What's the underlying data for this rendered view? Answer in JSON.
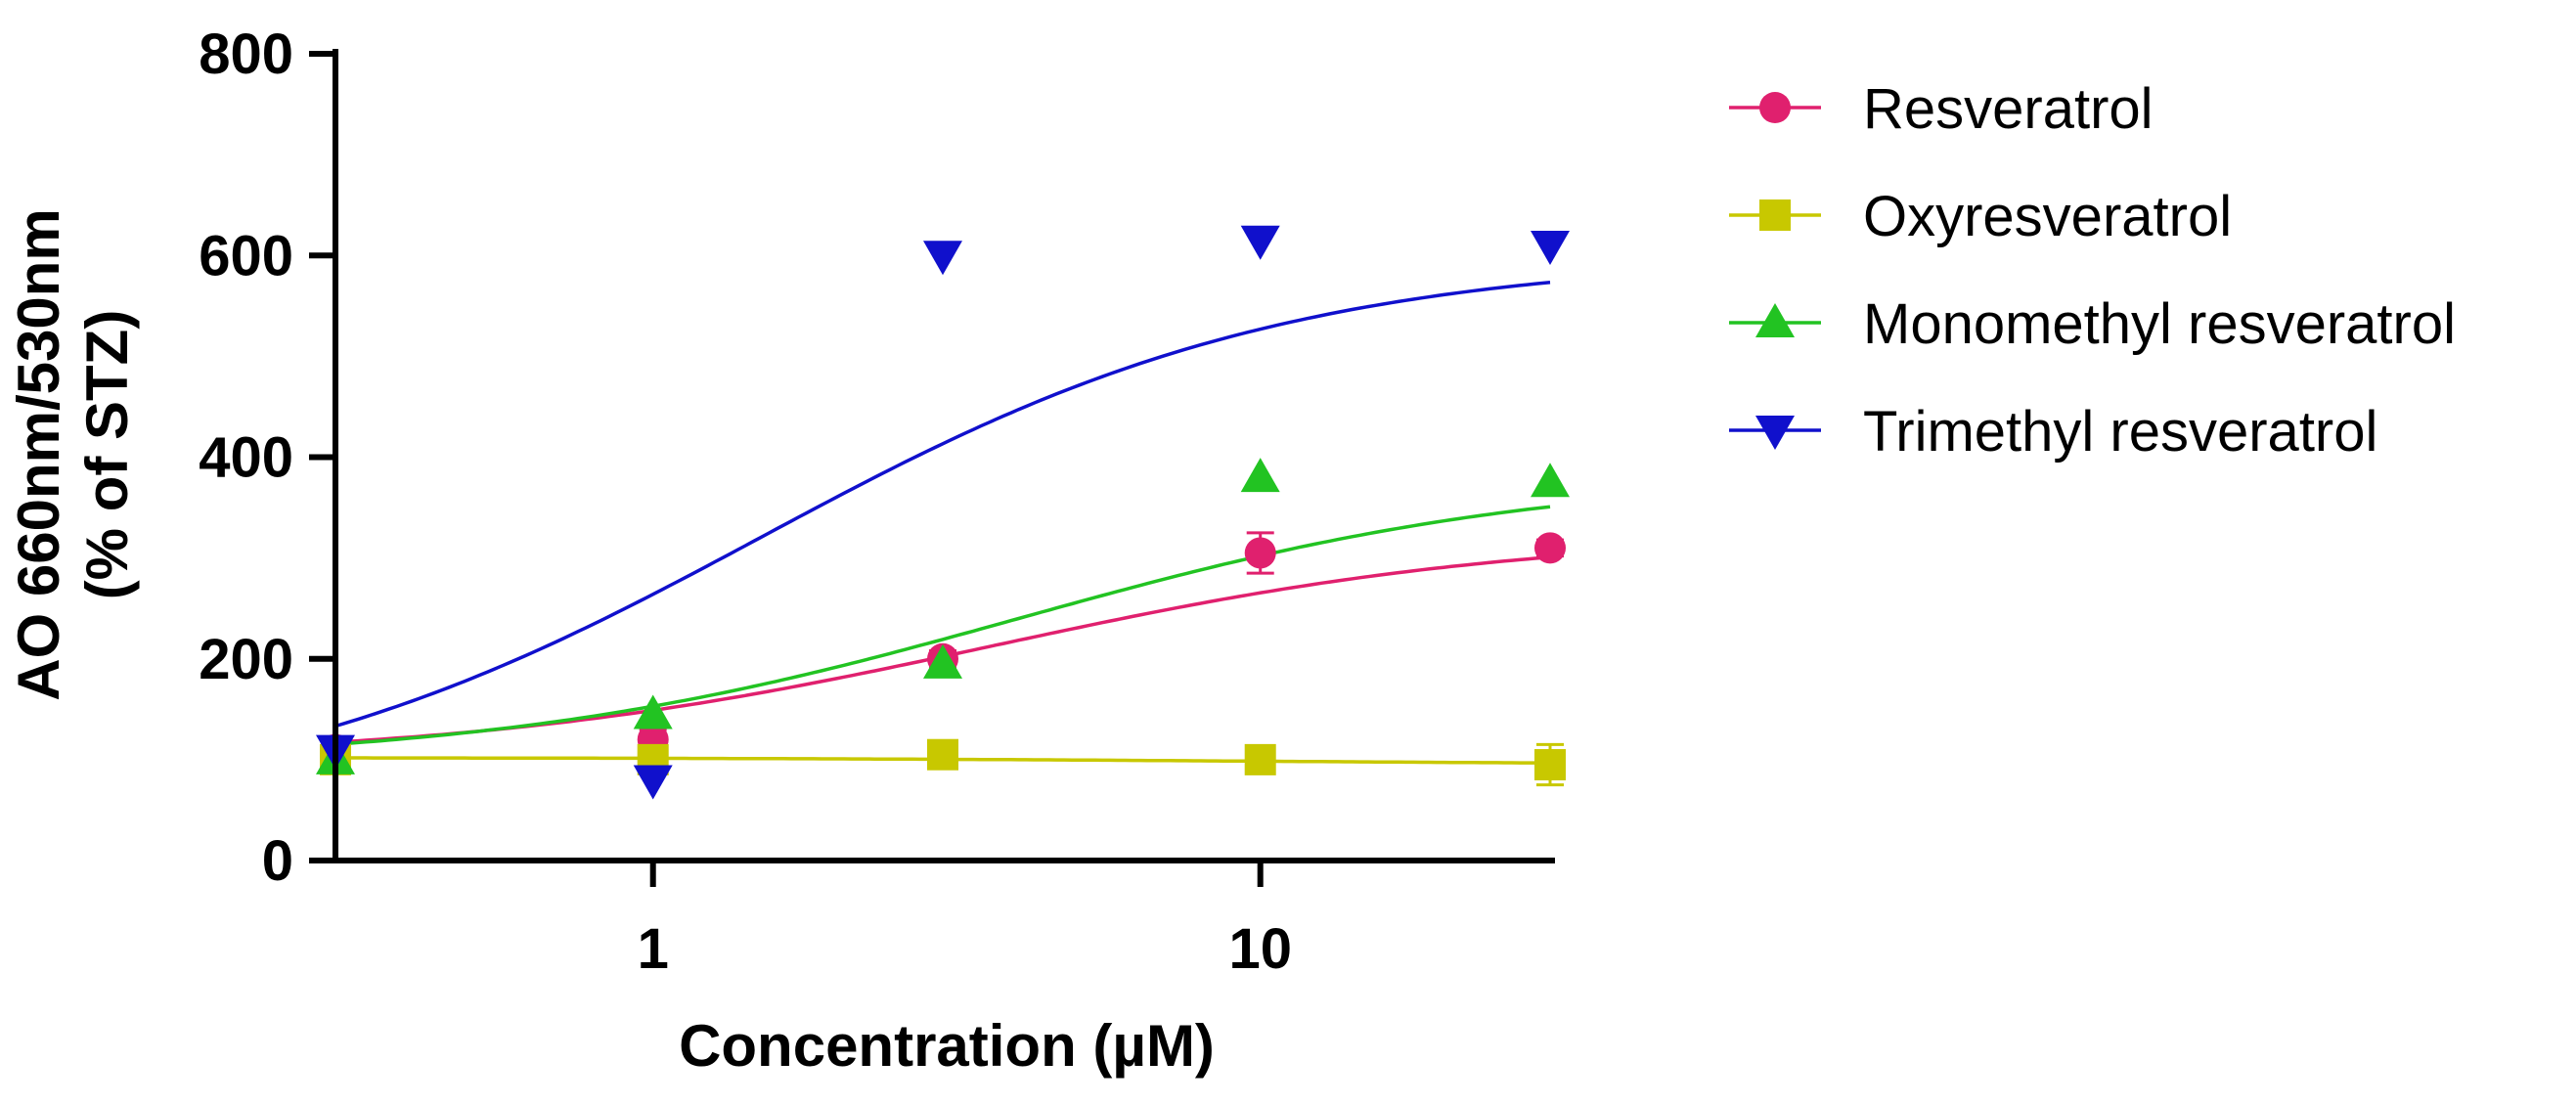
{
  "chart_data": {
    "type": "scatter",
    "title": "",
    "xlabel": "Concentration (µM)",
    "ylabel_lines": [
      "AO 660nm/530nm",
      "(% of STZ)"
    ],
    "xscale": "log",
    "xlim": [
      0.3,
      30
    ],
    "ylim": [
      0,
      800
    ],
    "x_ticks": [
      {
        "value": 1,
        "label": "1"
      },
      {
        "value": 10,
        "label": "10"
      }
    ],
    "y_ticks": [
      {
        "value": 0,
        "label": "0"
      },
      {
        "value": 200,
        "label": "200"
      },
      {
        "value": 400,
        "label": "400"
      },
      {
        "value": 600,
        "label": "600"
      },
      {
        "value": 800,
        "label": "800"
      }
    ],
    "grid": false,
    "legend_position": "right",
    "series": [
      {
        "name": "Resveratrol",
        "color": "#E0206E",
        "marker": "circle",
        "x": [
          0.3,
          1,
          3,
          10,
          30
        ],
        "y": [
          110,
          120,
          200,
          305,
          310
        ],
        "err": [
          0,
          10,
          8,
          20,
          8
        ],
        "fit": {
          "bottom": 100,
          "top": 325,
          "ec50": 3.6,
          "hill": 1.0
        }
      },
      {
        "name": "Oxyresveratrol",
        "color": "#C8C800",
        "marker": "square",
        "x": [
          0.3,
          1,
          3,
          10,
          30
        ],
        "y": [
          100,
          100,
          105,
          100,
          95
        ],
        "err": [
          0,
          5,
          5,
          5,
          20
        ],
        "fit": {
          "bottom": 102,
          "top": 95,
          "ec50": 10,
          "hill": 1.0
        }
      },
      {
        "name": "Monomethyl resveratrol",
        "color": "#22C322",
        "marker": "triangle-up",
        "x": [
          0.3,
          1,
          3,
          10,
          30
        ],
        "y": [
          100,
          145,
          195,
          380,
          375
        ],
        "err": [
          0,
          0,
          0,
          0,
          0
        ],
        "fit": {
          "bottom": 95,
          "top": 385,
          "ec50": 4.0,
          "hill": 1.0
        }
      },
      {
        "name": "Trimethyl resveratrol",
        "color": "#1010CC",
        "marker": "triangle-down",
        "x": [
          0.3,
          1,
          3,
          10,
          30
        ],
        "y": [
          110,
          80,
          600,
          615,
          610
        ],
        "err": [
          0,
          0,
          0,
          0,
          0
        ],
        "fit": {
          "bottom": 40,
          "top": 600,
          "ec50": 1.5,
          "hill": 1.0
        }
      }
    ]
  }
}
